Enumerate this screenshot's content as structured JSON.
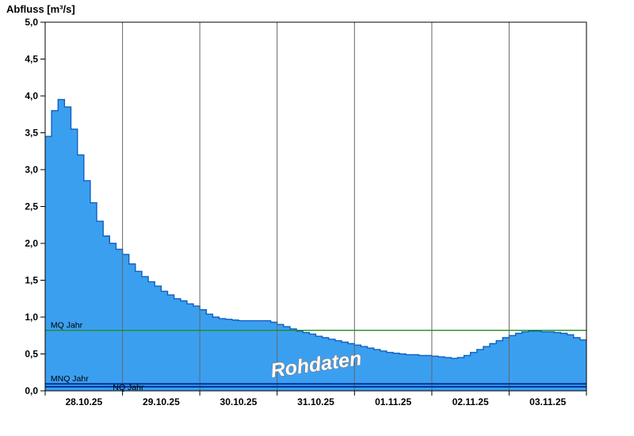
{
  "chart_data": {
    "type": "area",
    "title": "Abfluss [m³/s]",
    "ylabel": "Abfluss [m³/s]",
    "unit": "m³/s",
    "ylim": [
      0,
      5
    ],
    "y_tick_step": 0.5,
    "y_tick_labels": [
      "0,0",
      "0,5",
      "1,0",
      "1,5",
      "2,0",
      "2,5",
      "3,0",
      "3,5",
      "4,0",
      "4,5",
      "5,0"
    ],
    "x_tick_labels": [
      "28.10.25",
      "29.10.25",
      "30.10.25",
      "31.10.25",
      "01.11.25",
      "02.11.25",
      "03.11.25"
    ],
    "days": 7,
    "sample_interval_hours": 2,
    "grid": "vertical-day-lines",
    "legend": "none",
    "watermark": "Rohdaten",
    "series": [
      {
        "name": "Abfluss (Rohdaten)",
        "unit": "m³/s",
        "step": true,
        "values": [
          3.45,
          3.8,
          3.95,
          3.85,
          3.55,
          3.2,
          2.85,
          2.55,
          2.3,
          2.1,
          2.0,
          1.92,
          1.85,
          1.72,
          1.62,
          1.55,
          1.48,
          1.42,
          1.35,
          1.3,
          1.25,
          1.22,
          1.18,
          1.15,
          1.1,
          1.04,
          1.0,
          0.98,
          0.97,
          0.96,
          0.95,
          0.95,
          0.95,
          0.95,
          0.95,
          0.93,
          0.9,
          0.87,
          0.84,
          0.81,
          0.79,
          0.77,
          0.74,
          0.72,
          0.7,
          0.68,
          0.66,
          0.64,
          0.62,
          0.6,
          0.58,
          0.56,
          0.54,
          0.52,
          0.51,
          0.5,
          0.49,
          0.49,
          0.48,
          0.48,
          0.47,
          0.46,
          0.45,
          0.44,
          0.45,
          0.48,
          0.52,
          0.56,
          0.6,
          0.64,
          0.68,
          0.72,
          0.75,
          0.78,
          0.8,
          0.81,
          0.81,
          0.8,
          0.8,
          0.79,
          0.78,
          0.76,
          0.72,
          0.69
        ]
      }
    ],
    "reference_lines": [
      {
        "label": "MQ Jahr",
        "value": 0.82,
        "color": "#1f8f1f",
        "width": 1.3,
        "label_x_hours": 1.7,
        "label_dy": -3
      },
      {
        "label": "MNQ Jahr",
        "value": 0.095,
        "color": "#003399",
        "width": 2,
        "label_x_hours": 1.7,
        "label_dy": -3
      },
      {
        "label": "NQ Jahr",
        "value": 0.055,
        "color": "#003399",
        "width": 2,
        "label_x_hours": 21,
        "label_dy": 4
      }
    ],
    "colors": {
      "area_fill": "#3b9ff0",
      "area_stroke": "#0f5fc0",
      "grid": "#666666",
      "axis": "#000000",
      "background": "#ffffff"
    }
  }
}
